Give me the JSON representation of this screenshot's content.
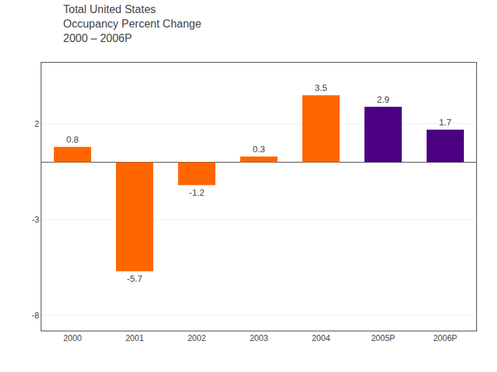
{
  "chart_data": {
    "type": "bar",
    "title": "Total United States\nOccupancy Percent Change\n2000 – 2006P",
    "categories": [
      "2000",
      "2001",
      "2002",
      "2003",
      "2004",
      "2005P",
      "2006P"
    ],
    "values": [
      0.8,
      -5.7,
      -1.2,
      0.3,
      3.5,
      2.9,
      1.7
    ],
    "colors": [
      "#FF6600",
      "#FF6600",
      "#FF6600",
      "#FF6600",
      "#FF6600",
      "#4B0082",
      "#4B0082"
    ],
    "ylim": [
      -8.8,
      5.2
    ],
    "yticks": [
      2,
      -3,
      -8
    ],
    "grid": true,
    "data_labels": true
  }
}
